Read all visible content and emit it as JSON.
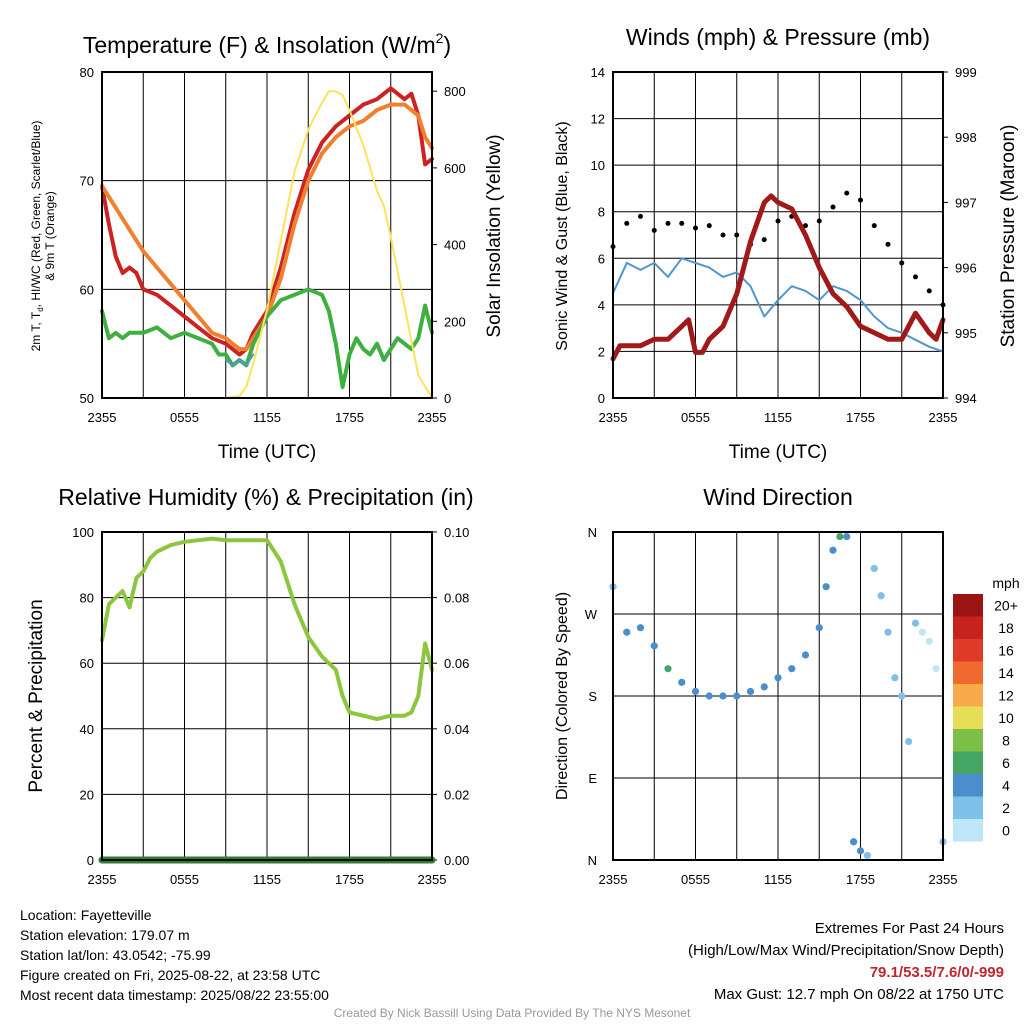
{
  "colors": {
    "red": "#cc2222",
    "orange": "#f08030",
    "green": "#3db040",
    "blue": "#4f96d0",
    "yellow": "#fde35a",
    "maroon": "#a01a1a",
    "black": "#000000",
    "rh": "#8cc63f",
    "precip": "#2e7d32",
    "extremes": "#c0272d",
    "credit": "#999999"
  },
  "charts": {
    "temp": {
      "title": "Temperature (F) & Insolation (W/m",
      "title_sup": "2",
      "title_close": ")",
      "ylabel_lines": [
        "2m T, T",
        "d",
        ", HI/WC (Red, Green, Scarlet/Blue)",
        "& 9m T (Orange)"
      ],
      "y2label": "Solar Insolation (Yellow)",
      "xlabel": "Time (UTC)"
    },
    "wind": {
      "title": "Winds (mph) & Pressure (mb)",
      "ylabel": "Sonic Wind & Gust (Blue, Black)",
      "y2label": "Station Pressure (Maroon)",
      "xlabel": "Time (UTC)"
    },
    "rh": {
      "title": "Relative Humidity (%) & Precipitation (in)",
      "ylabel": "Percent & Precipitation"
    },
    "dir": {
      "title": "Wind Direction",
      "ylabel": "Direction (Colored By Speed)",
      "colorbar_title": "mph"
    }
  },
  "chart_data": [
    {
      "type": "line",
      "title": "Temperature (F) & Insolation (W/m2)",
      "xlabel": "Time (UTC)",
      "xticks": [
        "2355",
        "0555",
        "1155",
        "1755",
        "2355"
      ],
      "xlim_hours": [
        0,
        24
      ],
      "ylim": [
        50,
        80
      ],
      "yticks": [
        50,
        60,
        70,
        80
      ],
      "y2lim": [
        0,
        850
      ],
      "y2ticks": [
        0,
        200,
        400,
        600,
        800
      ],
      "series": [
        {
          "color": "red",
          "axis": "left",
          "x": [
            0,
            0.5,
            1,
            1.5,
            2,
            2.5,
            3,
            4,
            5,
            6,
            7,
            8,
            9,
            9.5,
            10,
            10.5,
            11,
            12,
            13,
            14,
            15,
            16,
            17,
            18,
            19,
            20,
            20.5,
            21,
            21.5,
            22,
            22.5,
            23,
            23.5,
            24
          ],
          "y": [
            69.5,
            66,
            63,
            61.5,
            62,
            61.5,
            60,
            59.5,
            58.5,
            57.5,
            56.5,
            55.5,
            55,
            54.5,
            54,
            54.5,
            56,
            58,
            62,
            67,
            71,
            73.5,
            75,
            76,
            77,
            77.5,
            78,
            78.5,
            78,
            77.5,
            78,
            76,
            71.5,
            72
          ]
        },
        {
          "color": "orange",
          "axis": "left",
          "x": [
            0,
            1,
            2,
            3,
            4,
            5,
            6,
            7,
            8,
            9,
            9.5,
            10,
            10.5,
            11,
            12,
            13,
            14,
            15,
            16,
            17,
            18,
            19,
            20,
            21,
            22,
            22.5,
            23,
            23.5,
            24
          ],
          "y": [
            69.5,
            67.5,
            65.5,
            63.5,
            62,
            60.5,
            59,
            57.5,
            56,
            55.5,
            55,
            54.5,
            54.5,
            55.5,
            57.5,
            61,
            66,
            70,
            72.5,
            74,
            75,
            75.5,
            76.5,
            77,
            77,
            76.5,
            76,
            74,
            73
          ]
        },
        {
          "color": "green",
          "axis": "left",
          "x": [
            0,
            0.5,
            1,
            1.5,
            2,
            3,
            4,
            5,
            6,
            7,
            8,
            8.5,
            9,
            9.5,
            10,
            10.5,
            11,
            12,
            13,
            14,
            15,
            16,
            16.5,
            17,
            17.5,
            18,
            18.5,
            19,
            19.5,
            20,
            20.5,
            21,
            21.5,
            22,
            22.5,
            23,
            23.5,
            24
          ],
          "y": [
            58,
            55.5,
            56,
            55.5,
            56,
            56,
            56.5,
            55.5,
            56,
            55.5,
            55,
            54,
            54,
            53,
            53.5,
            53,
            55,
            57.5,
            59,
            59.5,
            60,
            59.5,
            58,
            55,
            51,
            54,
            55.5,
            54.5,
            54,
            55,
            53.5,
            54.5,
            55.5,
            55,
            54.5,
            55.5,
            58.5,
            56
          ]
        },
        {
          "color": "blue",
          "axis": "left",
          "x": [
            9,
            9.5,
            10,
            10.5,
            11
          ],
          "y": [
            53.5,
            53,
            53.5,
            53,
            54
          ]
        },
        {
          "color": "yellow",
          "axis": "right",
          "x": [
            0,
            9,
            10,
            10.5,
            11,
            12,
            13,
            14,
            15,
            16,
            16.5,
            17,
            17.5,
            18,
            19,
            20,
            20.5,
            21,
            22,
            23,
            24
          ],
          "y": [
            0,
            0,
            5,
            30,
            90,
            230,
            410,
            590,
            700,
            770,
            800,
            800,
            790,
            750,
            660,
            540,
            500,
            420,
            240,
            60,
            0
          ]
        }
      ]
    },
    {
      "type": "line",
      "title": "Winds (mph) & Pressure (mb)",
      "xlabel": "Time (UTC)",
      "xticks": [
        "2355",
        "0555",
        "1155",
        "1755",
        "2355"
      ],
      "xlim_hours": [
        0,
        24
      ],
      "ylim": [
        0,
        14
      ],
      "yticks": [
        0,
        2,
        4,
        6,
        8,
        10,
        12,
        14
      ],
      "y2lim": [
        994,
        999
      ],
      "y2ticks": [
        994,
        995,
        996,
        997,
        998,
        999
      ],
      "series": [
        {
          "color": "blue",
          "axis": "left",
          "style": "line",
          "x": [
            0,
            1,
            2,
            3,
            4,
            5,
            6,
            7,
            8,
            9,
            10,
            11,
            12,
            13,
            14,
            15,
            16,
            17,
            18,
            19,
            20,
            21,
            22,
            23,
            24
          ],
          "y": [
            4.5,
            5.8,
            5.5,
            5.8,
            5.2,
            6,
            5.8,
            5.6,
            5.2,
            5.4,
            4.8,
            3.5,
            4.2,
            4.8,
            4.6,
            4.2,
            4.8,
            4.6,
            4.2,
            3.5,
            3,
            2.8,
            2.5,
            2.2,
            2
          ]
        },
        {
          "color": "black",
          "axis": "left",
          "style": "points",
          "x": [
            0,
            1,
            2,
            3,
            4,
            5,
            6,
            7,
            8,
            9,
            10,
            11,
            12,
            13,
            14,
            15,
            16,
            17,
            18,
            19,
            20,
            21,
            22,
            23,
            24
          ],
          "y": [
            6.5,
            7.5,
            7.8,
            7.2,
            7.5,
            7.5,
            7.3,
            7.4,
            7,
            7,
            6.6,
            6.8,
            7.6,
            7.8,
            7.4,
            7.6,
            8.2,
            8.8,
            8.5,
            7.4,
            6.6,
            5.8,
            5.2,
            4.6,
            4
          ]
        },
        {
          "color": "maroon",
          "axis": "right",
          "style": "line",
          "x": [
            0,
            0.5,
            1,
            2,
            3,
            4,
            5,
            5.5,
            6,
            6.5,
            7,
            8,
            9,
            10,
            11,
            11.5,
            12,
            13,
            14,
            15,
            16,
            17,
            18,
            19,
            20,
            21,
            22,
            23,
            23.5,
            24
          ],
          "y": [
            994.6,
            994.8,
            994.8,
            994.8,
            994.9,
            994.9,
            995.1,
            995.2,
            994.7,
            994.7,
            994.9,
            995.1,
            995.6,
            996.4,
            997.0,
            997.1,
            997.0,
            996.9,
            996.5,
            996.0,
            995.6,
            995.4,
            995.1,
            995.0,
            994.9,
            994.9,
            995.3,
            995.0,
            994.9,
            995.2
          ]
        }
      ]
    },
    {
      "type": "line",
      "title": "Relative Humidity (%) & Precipitation (in)",
      "xticks": [
        "2355",
        "0555",
        "1155",
        "1755",
        "2355"
      ],
      "xlim_hours": [
        0,
        24
      ],
      "ylim": [
        0,
        100
      ],
      "yticks": [
        0,
        20,
        40,
        60,
        80,
        100
      ],
      "y2lim": [
        0,
        0.1
      ],
      "y2ticks": [
        0.0,
        0.02,
        0.04,
        0.06,
        0.08,
        0.1
      ],
      "series": [
        {
          "color": "rh",
          "axis": "left",
          "x": [
            0,
            0.5,
            1,
            1.5,
            2,
            2.5,
            3,
            3.5,
            4,
            5,
            6,
            7,
            8,
            9,
            10,
            11,
            12,
            13,
            14,
            15,
            16,
            17,
            17.5,
            18,
            19,
            20,
            21,
            22,
            22.5,
            23,
            23.5,
            24
          ],
          "y": [
            67,
            78,
            80,
            82,
            77,
            86,
            88,
            92,
            94,
            96,
            97,
            97.5,
            98,
            97.5,
            97.5,
            97.5,
            97.5,
            91,
            78,
            68,
            62,
            58,
            50,
            45,
            44,
            43,
            44,
            44,
            45,
            50,
            66,
            58
          ]
        },
        {
          "color": "precip",
          "axis": "right",
          "x": [
            0,
            24
          ],
          "y": [
            0,
            0
          ]
        }
      ]
    },
    {
      "type": "scatter",
      "title": "Wind Direction",
      "xticks": [
        "2355",
        "0555",
        "1155",
        "1755",
        "2355"
      ],
      "xlim_hours": [
        0,
        24
      ],
      "ylim": [
        0,
        360
      ],
      "yticks": [
        "N",
        "E",
        "S",
        "W",
        "N"
      ],
      "colorbar": {
        "label": "mph",
        "levels": [
          "0",
          "2",
          "4",
          "6",
          "8",
          "10",
          "12",
          "14",
          "16",
          "18",
          "20+"
        ],
        "colors": [
          "#bfe6f8",
          "#7fc0e8",
          "#4a8fcc",
          "#45a565",
          "#7dbf45",
          "#e6df55",
          "#f8a94a",
          "#f06a30",
          "#e03a2a",
          "#c8221f",
          "#9b1515"
        ]
      },
      "series": [
        {
          "name": "direction",
          "x": [
            0,
            1,
            2,
            3,
            4,
            5,
            6,
            7,
            8,
            9,
            10,
            11,
            12,
            13,
            14,
            15,
            15.5,
            16,
            16.5,
            17,
            17.5,
            18,
            18.5,
            19,
            19.5,
            20,
            20.5,
            21,
            21.5,
            22,
            22.5,
            23,
            23.5,
            24
          ],
          "y": [
            300,
            250,
            255,
            235,
            210,
            195,
            185,
            180,
            180,
            180,
            185,
            190,
            200,
            210,
            225,
            255,
            300,
            340,
            355,
            355,
            20,
            10,
            5,
            320,
            290,
            250,
            200,
            180,
            130,
            260,
            250,
            240,
            210,
            20
          ],
          "speed": [
            2,
            4,
            5,
            5,
            6,
            5,
            5,
            4,
            4,
            4,
            5,
            4,
            4,
            4,
            4,
            4,
            4,
            5,
            6,
            5,
            4,
            4,
            3,
            2,
            2,
            2,
            3,
            2,
            2,
            2,
            1,
            1,
            1,
            3
          ]
        }
      ]
    }
  ],
  "info_left": {
    "location": "Location: Fayetteville",
    "elevation": "Station elevation: 179.07 m",
    "latlon": "Station lat/lon: 43.0542; -75.99",
    "created": "Figure created on Fri, 2025-08-22, at 23:58 UTC",
    "recent": "Most recent data timestamp: 2025/08/22 23:55:00"
  },
  "info_right": {
    "header": "Extremes For Past 24 Hours",
    "subheader": "(High/Low/Max Wind/Precipitation/Snow Depth)",
    "values": "79.1/53.5/7.6/0/-999",
    "gust": "Max Gust: 12.7 mph On 08/22 at 1750 UTC"
  },
  "credit": "Created By Nick Bassill Using Data Provided By The NYS Mesonet"
}
